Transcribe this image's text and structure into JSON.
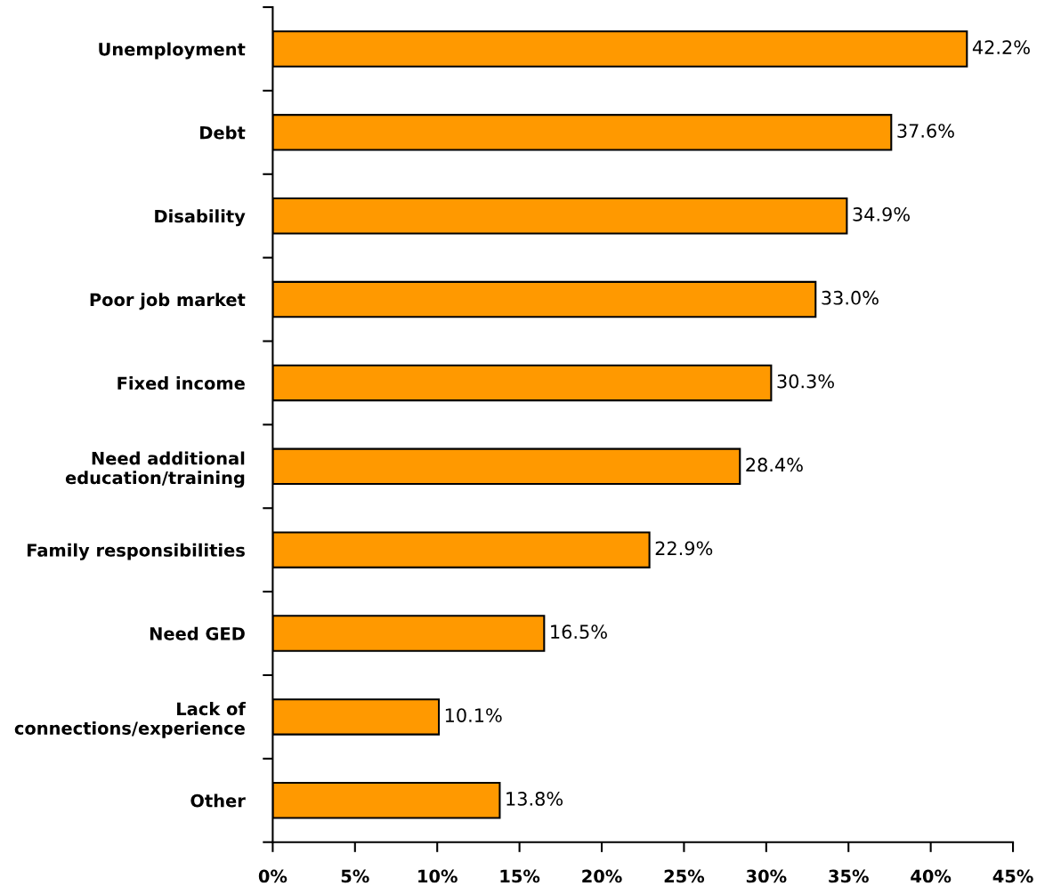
{
  "chart_data": {
    "type": "bar",
    "orientation": "horizontal",
    "categories": [
      "Unemployment",
      "Debt",
      "Disability",
      "Poor job market",
      "Fixed income",
      "Need additional\neducation/training",
      "Family responsibilities",
      "Need GED",
      "Lack of\nconnections/experience",
      "Other"
    ],
    "values": [
      42.2,
      37.6,
      34.9,
      33.0,
      30.3,
      28.4,
      22.9,
      16.5,
      10.1,
      13.8
    ],
    "value_labels": [
      "42.2%",
      "37.6%",
      "34.9%",
      "33.0%",
      "30.3%",
      "28.4%",
      "22.9%",
      "16.5%",
      "10.1%",
      "13.8%"
    ],
    "color": "#ff9900",
    "xlim": [
      0,
      45
    ],
    "xticks": [
      {
        "value": 0,
        "label": "0%"
      },
      {
        "value": 5,
        "label": "5%"
      },
      {
        "value": 10,
        "label": "10%"
      },
      {
        "value": 15,
        "label": "15%"
      },
      {
        "value": 20,
        "label": "20%"
      },
      {
        "value": 25,
        "label": "25%"
      },
      {
        "value": 30,
        "label": "30%"
      },
      {
        "value": 35,
        "label": "35%"
      },
      {
        "value": 40,
        "label": "40%"
      },
      {
        "value": 45,
        "label": "45%"
      }
    ],
    "grid": false,
    "legend": false
  }
}
